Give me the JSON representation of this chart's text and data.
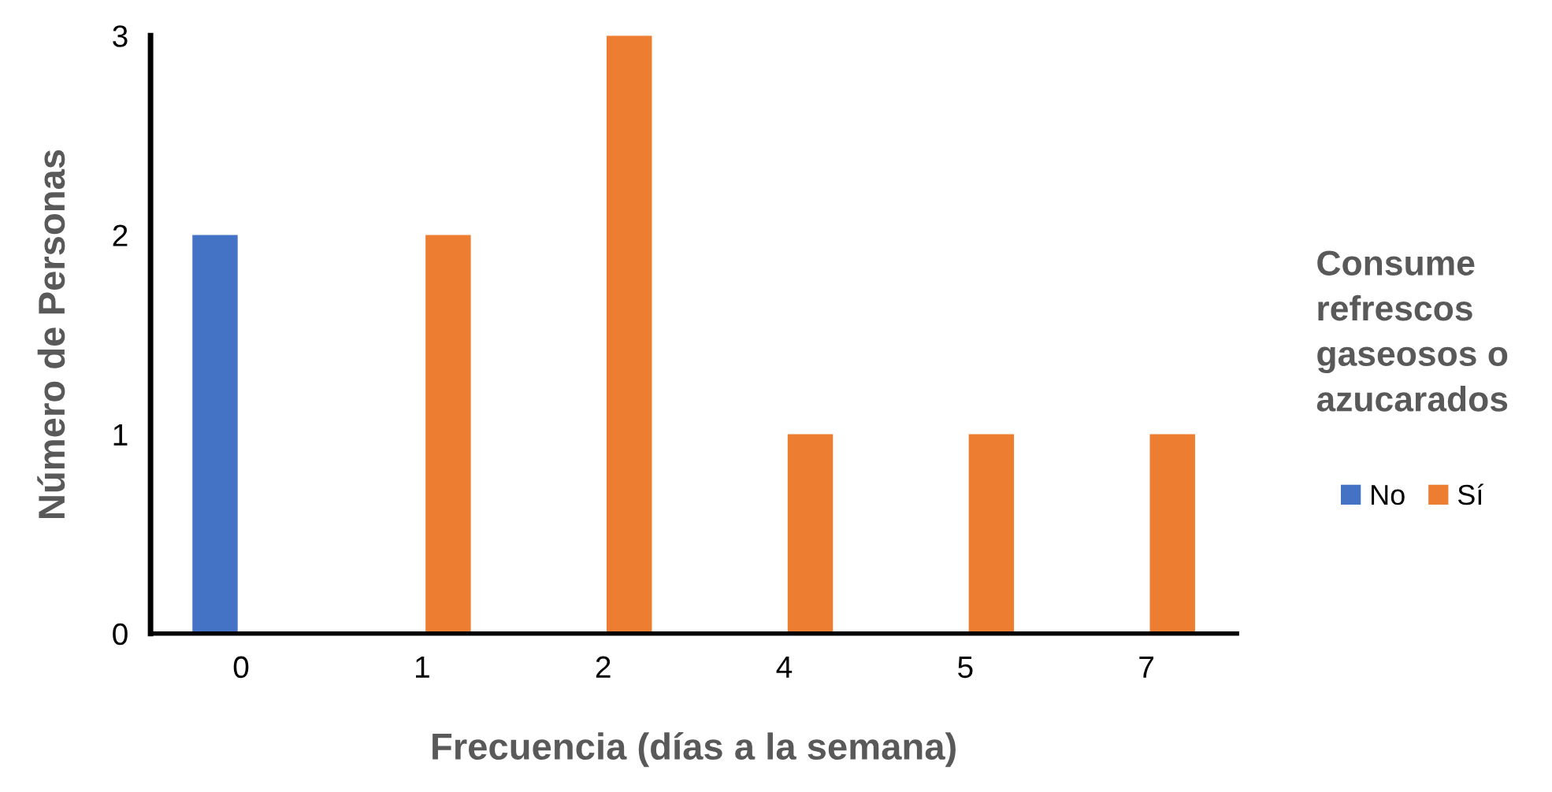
{
  "chart_data": {
    "type": "bar",
    "xlabel": "Frecuencia (días a la semana)",
    "ylabel": "Número de Personas",
    "legend_title": "Consume refrescos gaseosos o azucarados",
    "categories": [
      "0",
      "1",
      "2",
      "4",
      "5",
      "7"
    ],
    "series": [
      {
        "name": "No",
        "color": "#4472c4",
        "values": [
          2,
          null,
          null,
          null,
          null,
          null
        ]
      },
      {
        "name": "Sí",
        "color": "#ed7d31",
        "values": [
          null,
          2,
          3,
          1,
          1,
          1
        ]
      }
    ],
    "ylim": [
      0,
      3
    ],
    "yticks": [
      0,
      1,
      2,
      3
    ],
    "grid": false,
    "legend": "right"
  }
}
